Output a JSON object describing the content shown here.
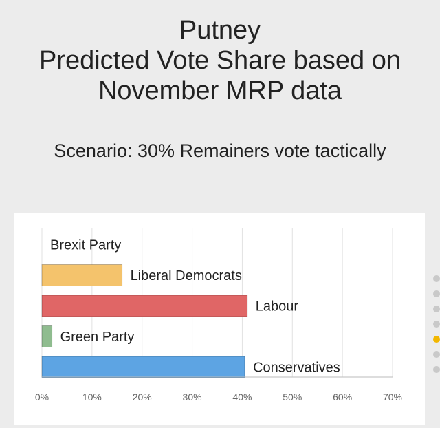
{
  "header": {
    "title_lines": [
      "Putney",
      "Predicted Vote Share based on",
      "November MRP data"
    ],
    "scenario": "Scenario: 30% Remainers vote tactically"
  },
  "chart_data": {
    "type": "bar",
    "orientation": "horizontal",
    "title": "",
    "xlabel": "",
    "ylabel": "",
    "categories": [
      "Brexit Party",
      "Liberal Democrats",
      "Labour",
      "Green Party",
      "Conservatives"
    ],
    "values": [
      0,
      16,
      41,
      2,
      40.5
    ],
    "colors": [
      "#bdbdbd",
      "#f4c36c",
      "#e06666",
      "#8fbc8f",
      "#5da4e3"
    ],
    "xlim": [
      0,
      70
    ],
    "xticks": [
      "0%",
      "10%",
      "20%",
      "30%",
      "40%",
      "50%",
      "60%",
      "70%"
    ],
    "grid": true,
    "legend": "none"
  },
  "carousel": {
    "dot_count": 7,
    "active_index": 4,
    "active_color": "#f2b700"
  }
}
